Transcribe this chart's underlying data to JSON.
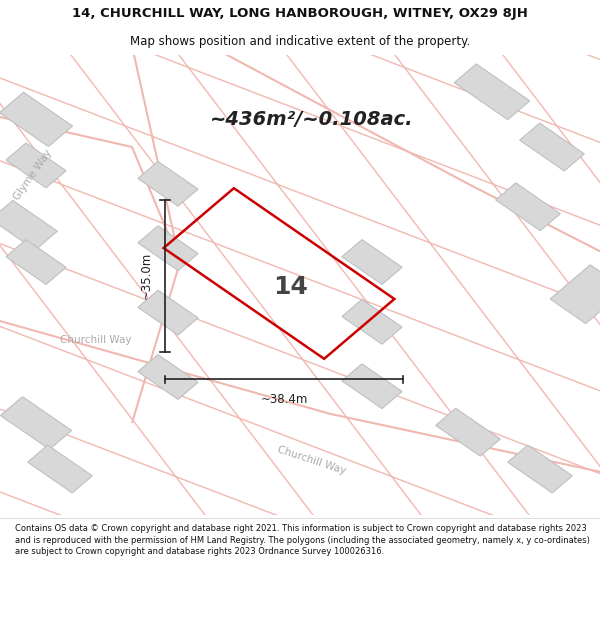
{
  "title_line1": "14, CHURCHILL WAY, LONG HANBOROUGH, WITNEY, OX29 8JH",
  "title_line2": "Map shows position and indicative extent of the property.",
  "area_text": "~436m²/~0.108ac.",
  "number_label": "14",
  "dim_width": "~38.4m",
  "dim_height": "~35.0m",
  "footer": "Contains OS data © Crown copyright and database right 2021. This information is subject to Crown copyright and database rights 2023 and is reproduced with the permission of HM Land Registry. The polygons (including the associated geometry, namely x, y co-ordinates) are subject to Crown copyright and database rights 2023 Ordnance Survey 100026316.",
  "bg_color": "#f2eeea",
  "map_bg": "#f2eeea",
  "road_color": "#f0b8b0",
  "building_fill": "#d8d8d8",
  "building_outline": "#c0c0c0",
  "plot_color": "#cc0000",
  "dim_line_color": "#222222",
  "road_label_color": "#aaaaaa",
  "title_color": "#111111",
  "footer_color": "#111111",
  "white": "#ffffff"
}
